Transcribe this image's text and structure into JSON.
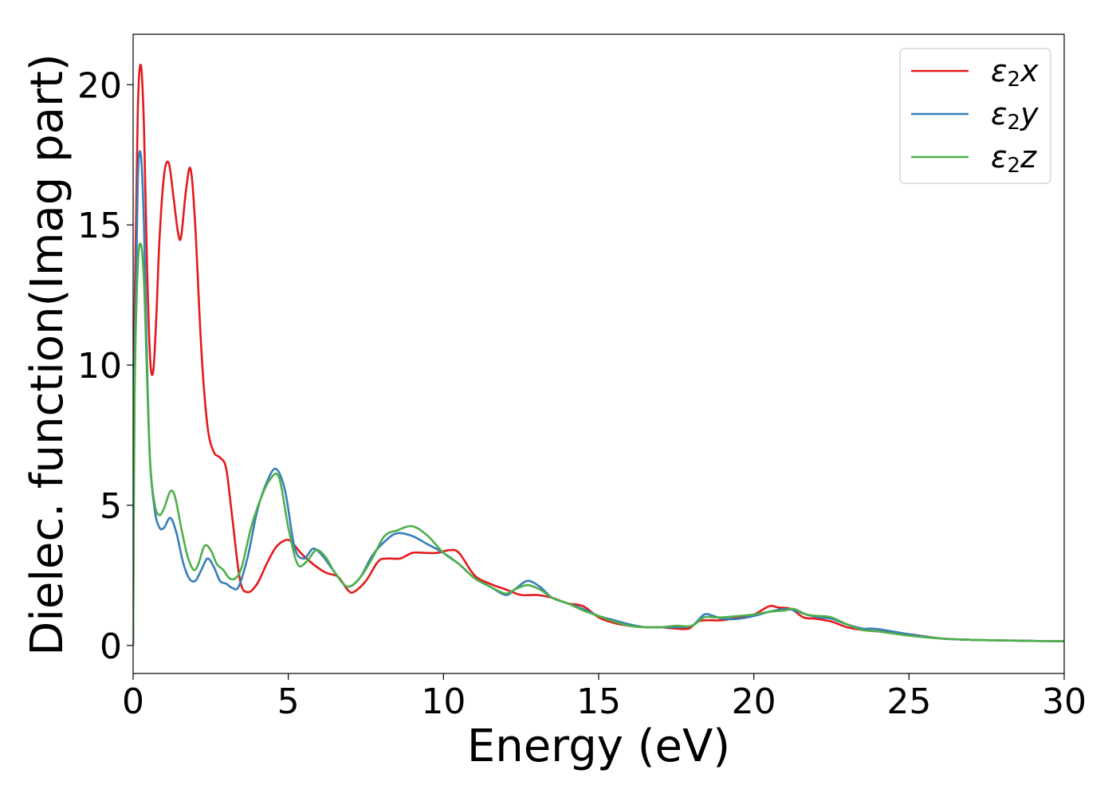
{
  "chart_data": {
    "type": "line",
    "title": "",
    "xlabel": "Energy (eV)",
    "ylabel": "Dielec. function(Imag part)",
    "xlim": [
      0,
      30
    ],
    "ylim": [
      -1,
      21.8
    ],
    "xticks": [
      0,
      5,
      10,
      15,
      20,
      25,
      30
    ],
    "yticks": [
      0,
      5,
      10,
      15,
      20
    ],
    "grid": false,
    "legend_position": "top-right",
    "series": [
      {
        "name": "x",
        "legend_main": "ε",
        "legend_sub": "2",
        "legend_var": "x",
        "color": "#e41a1c",
        "x": [
          0,
          0.05,
          0.15,
          0.25,
          0.35,
          0.45,
          0.55,
          0.65,
          0.75,
          0.85,
          1.0,
          1.15,
          1.3,
          1.45,
          1.55,
          1.7,
          1.85,
          2.0,
          2.2,
          2.4,
          2.6,
          2.8,
          3.0,
          3.2,
          3.45,
          3.7,
          4.0,
          4.3,
          4.6,
          4.9,
          5.1,
          5.4,
          5.8,
          6.2,
          6.6,
          6.9,
          7.1,
          7.5,
          7.9,
          8.2,
          8.6,
          9.0,
          9.4,
          9.8,
          10.2,
          10.5,
          11.0,
          11.5,
          12.0,
          12.5,
          13.0,
          13.5,
          14.0,
          14.5,
          15.0,
          15.5,
          16.0,
          16.5,
          17.0,
          17.5,
          17.9,
          18.2,
          18.5,
          19.0,
          19.5,
          20.0,
          20.5,
          20.8,
          21.2,
          21.6,
          22.0,
          22.5,
          23.0,
          23.5,
          24.0,
          25.0,
          26.0,
          27.0,
          28.0,
          29.0,
          30.0
        ],
        "y": [
          0,
          12.0,
          19.0,
          20.7,
          18.5,
          13.5,
          10.2,
          9.8,
          11.8,
          14.5,
          16.8,
          17.2,
          16.0,
          14.7,
          14.6,
          16.2,
          17.0,
          15.0,
          10.5,
          7.8,
          6.9,
          6.7,
          6.3,
          4.5,
          2.3,
          1.9,
          2.2,
          2.9,
          3.5,
          3.75,
          3.7,
          3.3,
          2.9,
          2.6,
          2.45,
          2.0,
          1.9,
          2.3,
          3.0,
          3.1,
          3.1,
          3.3,
          3.3,
          3.3,
          3.4,
          3.3,
          2.5,
          2.2,
          2.0,
          1.8,
          1.8,
          1.7,
          1.5,
          1.4,
          1.0,
          0.8,
          0.7,
          0.65,
          0.65,
          0.6,
          0.6,
          0.85,
          0.9,
          0.9,
          1.0,
          1.1,
          1.4,
          1.35,
          1.3,
          1.0,
          0.95,
          0.85,
          0.65,
          0.55,
          0.5,
          0.4,
          0.25,
          0.2,
          0.18,
          0.16,
          0.15
        ]
      },
      {
        "name": "y",
        "legend_main": "ε",
        "legend_sub": "2",
        "legend_var": "y",
        "color": "#377eb8",
        "x": [
          0,
          0.05,
          0.15,
          0.25,
          0.35,
          0.45,
          0.55,
          0.7,
          0.85,
          1.0,
          1.2,
          1.4,
          1.6,
          1.8,
          2.0,
          2.2,
          2.4,
          2.6,
          2.8,
          3.0,
          3.2,
          3.4,
          3.7,
          4.0,
          4.3,
          4.6,
          4.9,
          5.2,
          5.5,
          5.8,
          6.1,
          6.5,
          6.9,
          7.3,
          7.7,
          8.1,
          8.5,
          9.0,
          9.5,
          10.0,
          10.5,
          11.0,
          11.5,
          12.0,
          12.3,
          12.7,
          13.1,
          13.5,
          14.0,
          14.5,
          15.0,
          15.5,
          16.0,
          16.5,
          17.0,
          17.5,
          18.0,
          18.4,
          18.7,
          19.0,
          19.5,
          20.0,
          20.5,
          21.0,
          21.3,
          21.7,
          22.1,
          22.5,
          23.0,
          23.5,
          23.8,
          24.2,
          25.0,
          26.0,
          27.0,
          28.0,
          29.0,
          30.0
        ],
        "y": [
          0,
          10.0,
          16.5,
          17.5,
          15.0,
          10.0,
          6.5,
          4.8,
          4.2,
          4.2,
          4.55,
          4.0,
          3.0,
          2.4,
          2.3,
          2.7,
          3.1,
          2.8,
          2.3,
          2.2,
          2.05,
          2.1,
          3.2,
          4.8,
          5.8,
          6.3,
          5.5,
          3.5,
          3.1,
          3.45,
          3.2,
          2.6,
          2.1,
          2.4,
          3.2,
          3.7,
          4.0,
          3.9,
          3.6,
          3.3,
          2.9,
          2.4,
          2.1,
          1.8,
          2.0,
          2.3,
          2.1,
          1.7,
          1.5,
          1.3,
          1.05,
          0.9,
          0.75,
          0.65,
          0.65,
          0.65,
          0.7,
          1.1,
          1.05,
          0.95,
          0.95,
          1.05,
          1.2,
          1.3,
          1.25,
          1.1,
          1.0,
          0.95,
          0.75,
          0.6,
          0.6,
          0.55,
          0.4,
          0.25,
          0.2,
          0.18,
          0.16,
          0.15
        ]
      },
      {
        "name": "z",
        "legend_main": "ε",
        "legend_sub": "2",
        "legend_var": "z",
        "color": "#4daf4a",
        "x": [
          0,
          0.05,
          0.15,
          0.25,
          0.35,
          0.45,
          0.55,
          0.7,
          0.85,
          1.0,
          1.2,
          1.35,
          1.55,
          1.75,
          1.95,
          2.1,
          2.3,
          2.5,
          2.7,
          2.9,
          3.1,
          3.3,
          3.5,
          3.8,
          4.1,
          4.4,
          4.7,
          5.0,
          5.3,
          5.6,
          5.9,
          6.2,
          6.5,
          6.9,
          7.3,
          7.7,
          8.1,
          8.5,
          9.0,
          9.5,
          10.0,
          10.5,
          11.0,
          11.5,
          12.0,
          12.3,
          12.7,
          13.1,
          13.5,
          14.0,
          14.5,
          15.0,
          15.5,
          16.0,
          16.5,
          17.0,
          17.5,
          18.0,
          18.4,
          18.7,
          19.0,
          19.5,
          20.0,
          20.5,
          21.0,
          21.3,
          21.7,
          22.1,
          22.5,
          23.0,
          23.5,
          24.0,
          25.0,
          26.0,
          27.0,
          28.0,
          29.0,
          30.0
        ],
        "y": [
          0,
          9.0,
          13.5,
          14.3,
          13.0,
          9.5,
          6.5,
          5.0,
          4.65,
          4.9,
          5.5,
          5.3,
          4.2,
          3.2,
          2.7,
          2.9,
          3.55,
          3.4,
          2.9,
          2.7,
          2.4,
          2.4,
          2.8,
          4.2,
          5.2,
          5.9,
          6.0,
          4.2,
          2.9,
          3.0,
          3.4,
          3.15,
          2.6,
          2.1,
          2.4,
          3.1,
          3.9,
          4.1,
          4.25,
          3.9,
          3.3,
          2.9,
          2.4,
          2.1,
          1.85,
          2.0,
          2.15,
          2.0,
          1.7,
          1.5,
          1.25,
          1.05,
          0.85,
          0.7,
          0.65,
          0.65,
          0.7,
          0.7,
          1.0,
          1.0,
          1.0,
          1.05,
          1.1,
          1.2,
          1.25,
          1.3,
          1.1,
          1.05,
          1.0,
          0.75,
          0.55,
          0.5,
          0.35,
          0.25,
          0.2,
          0.18,
          0.16,
          0.15
        ]
      }
    ]
  }
}
